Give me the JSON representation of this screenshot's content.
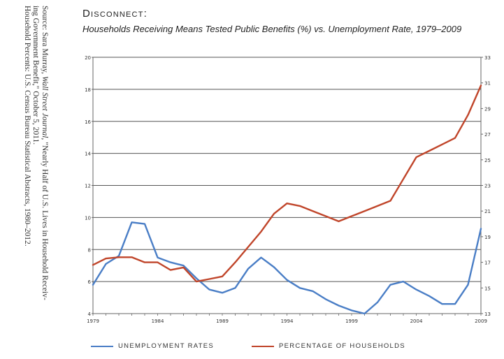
{
  "source": {
    "line1_prefix": "Source: Sara Murray, ",
    "line1_journal": "Wall Street Journal",
    "line1_suffix": ", \"Nearly Half of U.S. Lives in Household Receiv-",
    "line2": "ing Government Benefit,\" October 5, 2011.",
    "line3": "Household Percents: U.S. Census Bureau Statistical Abstracts, 1980–2012."
  },
  "header": {
    "title": "Disconnect:",
    "subtitle": "Households Receiving Means Tested Public Benefits (%) vs. Unemployment Rate, 1979–2009"
  },
  "colors": {
    "unemployment": "#4a7ec6",
    "households": "#c0452a",
    "grid": "#555555",
    "axis": "#666666"
  },
  "chart_data": {
    "type": "line",
    "x": [
      1979,
      1980,
      1981,
      1982,
      1983,
      1984,
      1985,
      1986,
      1987,
      1988,
      1989,
      1990,
      1991,
      1992,
      1993,
      1994,
      1995,
      1996,
      1997,
      1998,
      1999,
      2000,
      2001,
      2002,
      2003,
      2004,
      2005,
      2006,
      2007,
      2008,
      2009
    ],
    "x_tick_labels": [
      "1979",
      "1984",
      "1989",
      "1994",
      "1999",
      "2004",
      "2009"
    ],
    "y_left_ticks": [
      "4",
      "6",
      "8",
      "10",
      "12",
      "14",
      "16",
      "18",
      "20"
    ],
    "y_right_ticks": [
      "13",
      "15",
      "17",
      "19",
      "21",
      "23",
      "25",
      "27",
      "29",
      "31",
      "33"
    ],
    "ylim_left": [
      4,
      20
    ],
    "ylim_right": [
      13,
      33
    ],
    "grid": true,
    "legend_position": "bottom",
    "series": [
      {
        "name": "UNEMPLOYMENT RATES",
        "axis": "left",
        "values": [
          5.8,
          7.1,
          7.6,
          9.7,
          9.6,
          7.5,
          7.2,
          7.0,
          6.2,
          5.5,
          5.3,
          5.6,
          6.8,
          7.5,
          6.9,
          6.1,
          5.6,
          5.4,
          4.9,
          4.5,
          4.2,
          4.0,
          4.7,
          5.8,
          6.0,
          5.5,
          5.1,
          4.6,
          4.6,
          5.8,
          9.3
        ]
      },
      {
        "name": "PERCENTAGE OF HOUSEHOLDS",
        "axis": "right",
        "values": [
          16.8,
          17.3,
          17.4,
          17.4,
          17.0,
          17.0,
          16.4,
          16.6,
          15.5,
          15.7,
          15.9,
          17.0,
          18.2,
          19.4,
          20.8,
          21.6,
          21.4,
          21.0,
          20.6,
          20.2,
          20.6,
          21.0,
          21.4,
          21.8,
          23.5,
          25.2,
          25.7,
          26.2,
          26.7,
          28.5,
          30.8
        ]
      }
    ]
  },
  "legend": {
    "unemployment": "UNEMPLOYMENT RATES",
    "households": "PERCENTAGE OF HOUSEHOLDS"
  }
}
